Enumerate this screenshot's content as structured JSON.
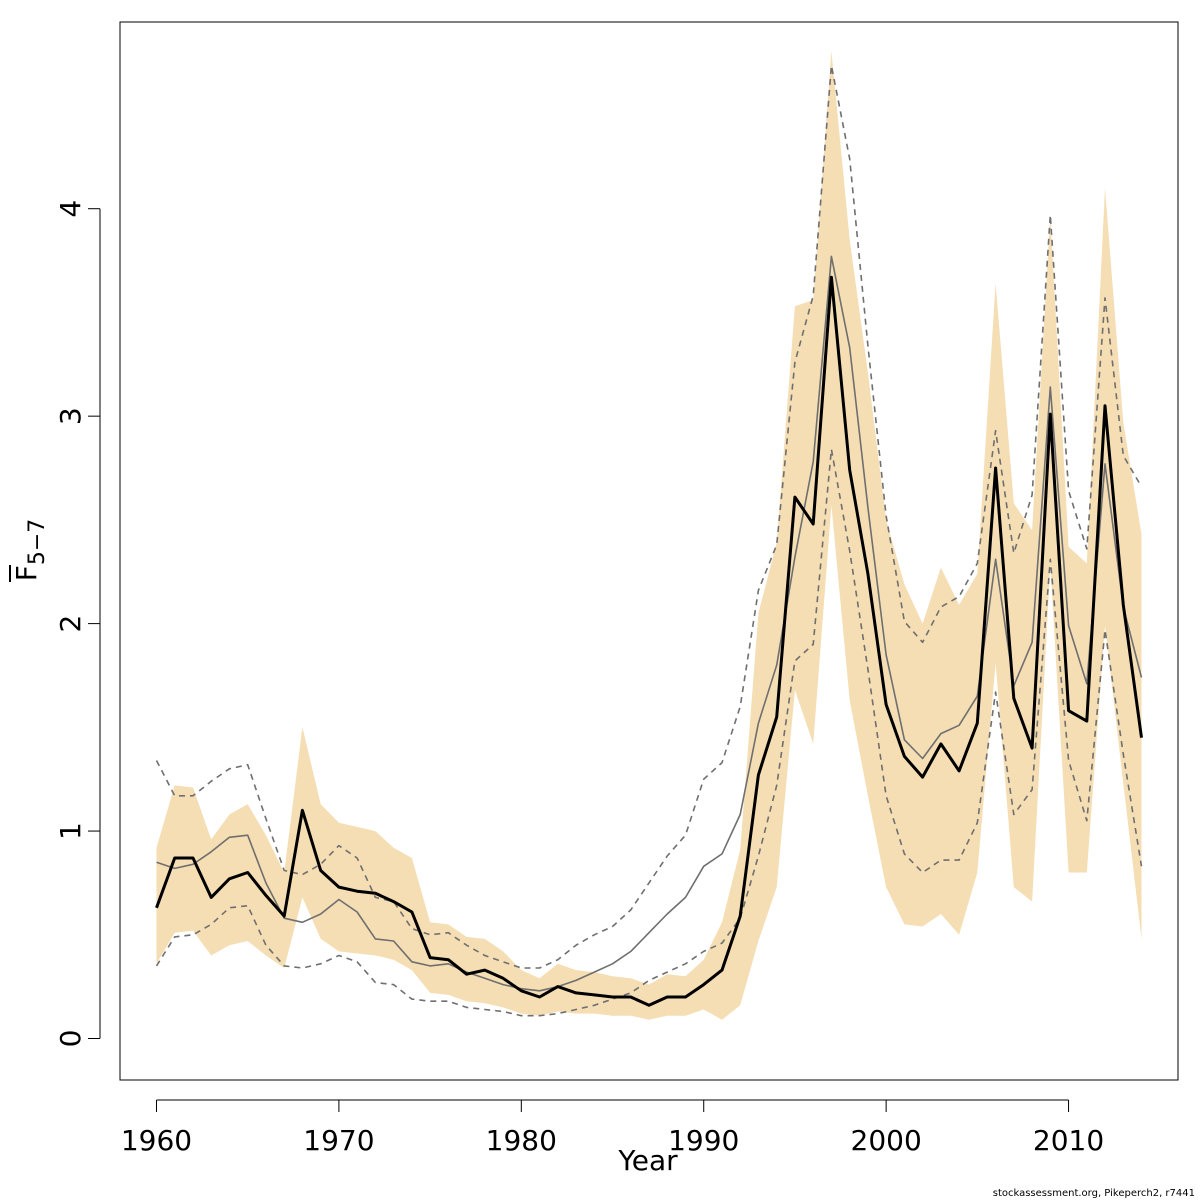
{
  "chart_data": {
    "type": "line",
    "xlabel": "Year",
    "ylabel_main": "F",
    "ylabel_sub": "5−7",
    "xlim": [
      1958,
      2016
    ],
    "ylim": [
      -0.2,
      4.9
    ],
    "x_ticks": [
      1960,
      1970,
      1980,
      1990,
      2000,
      2010
    ],
    "y_ticks": [
      0,
      1,
      2,
      3,
      4
    ],
    "grid": false,
    "years": [
      1960,
      1961,
      1962,
      1963,
      1964,
      1965,
      1966,
      1967,
      1968,
      1969,
      1970,
      1971,
      1972,
      1973,
      1974,
      1975,
      1976,
      1977,
      1978,
      1979,
      1980,
      1981,
      1982,
      1983,
      1984,
      1985,
      1986,
      1987,
      1988,
      1989,
      1990,
      1991,
      1992,
      1993,
      1994,
      1995,
      1996,
      1997,
      1998,
      1999,
      2000,
      2001,
      2002,
      2003,
      2004,
      2005,
      2006,
      2007,
      2008,
      2009,
      2010,
      2011,
      2012,
      2013,
      2014
    ],
    "band_upper": [
      0.92,
      1.22,
      1.21,
      0.96,
      1.08,
      1.13,
      0.98,
      0.8,
      1.5,
      1.13,
      1.04,
      1.02,
      1.0,
      0.92,
      0.87,
      0.56,
      0.55,
      0.49,
      0.48,
      0.42,
      0.33,
      0.29,
      0.36,
      0.33,
      0.32,
      0.3,
      0.29,
      0.26,
      0.31,
      0.3,
      0.38,
      0.56,
      0.91,
      2.05,
      2.39,
      3.53,
      3.56,
      4.76,
      3.85,
      3.21,
      2.5,
      2.19,
      2.0,
      2.27,
      2.09,
      2.24,
      3.64,
      2.58,
      2.45,
      3.97,
      2.37,
      2.29,
      4.1,
      2.97,
      2.43
    ],
    "band_lower": [
      0.36,
      0.51,
      0.52,
      0.4,
      0.45,
      0.47,
      0.4,
      0.34,
      0.68,
      0.48,
      0.42,
      0.41,
      0.4,
      0.38,
      0.33,
      0.22,
      0.21,
      0.18,
      0.17,
      0.15,
      0.12,
      0.11,
      0.13,
      0.12,
      0.12,
      0.11,
      0.11,
      0.09,
      0.11,
      0.11,
      0.14,
      0.09,
      0.16,
      0.47,
      0.73,
      1.68,
      1.42,
      2.57,
      1.63,
      1.17,
      0.73,
      0.55,
      0.54,
      0.6,
      0.5,
      0.8,
      1.81,
      0.73,
      0.66,
      2.28,
      0.8,
      0.8,
      1.99,
      1.23,
      0.48
    ],
    "series": [
      {
        "style": "estimate",
        "values": [
          0.63,
          0.87,
          0.87,
          0.68,
          0.77,
          0.8,
          0.69,
          0.59,
          1.1,
          0.81,
          0.73,
          0.71,
          0.7,
          0.66,
          0.61,
          0.39,
          0.38,
          0.31,
          0.33,
          0.29,
          0.23,
          0.2,
          0.25,
          0.22,
          0.21,
          0.2,
          0.2,
          0.16,
          0.2,
          0.2,
          0.26,
          0.33,
          0.59,
          1.27,
          1.55,
          2.61,
          2.48,
          3.67,
          2.74,
          2.24,
          1.61,
          1.36,
          1.26,
          1.42,
          1.29,
          1.52,
          2.75,
          1.64,
          1.4,
          3.01,
          1.58,
          1.53,
          3.05,
          2.09,
          1.45
        ]
      },
      {
        "style": "gray-solid",
        "values": [
          0.85,
          0.82,
          0.84,
          0.9,
          0.97,
          0.98,
          0.75,
          0.58,
          0.56,
          0.6,
          0.67,
          0.61,
          0.48,
          0.47,
          0.37,
          0.35,
          0.36,
          0.32,
          0.29,
          0.26,
          0.24,
          0.23,
          0.25,
          0.28,
          0.32,
          0.36,
          0.42,
          0.51,
          0.6,
          0.68,
          0.83,
          0.89,
          1.08,
          1.52,
          1.8,
          2.32,
          2.78,
          3.77,
          3.33,
          2.56,
          1.85,
          1.44,
          1.35,
          1.47,
          1.51,
          1.65,
          2.31,
          1.7,
          1.91,
          3.14,
          1.99,
          1.71,
          2.77,
          2.08,
          1.74
        ]
      },
      {
        "style": "gray-dashed-upper",
        "values": [
          1.34,
          1.17,
          1.17,
          1.24,
          1.3,
          1.32,
          1.06,
          0.81,
          0.79,
          0.84,
          0.93,
          0.87,
          0.68,
          0.66,
          0.53,
          0.5,
          0.51,
          0.45,
          0.4,
          0.37,
          0.34,
          0.34,
          0.38,
          0.45,
          0.5,
          0.54,
          0.62,
          0.75,
          0.88,
          0.98,
          1.25,
          1.33,
          1.6,
          2.16,
          2.38,
          3.26,
          3.58,
          4.69,
          4.24,
          3.34,
          2.52,
          2.01,
          1.91,
          2.08,
          2.13,
          2.29,
          2.93,
          2.34,
          2.62,
          3.97,
          2.64,
          2.36,
          3.57,
          2.81,
          2.66
        ]
      },
      {
        "style": "gray-dashed-lower",
        "values": [
          0.35,
          0.49,
          0.5,
          0.55,
          0.63,
          0.64,
          0.45,
          0.35,
          0.34,
          0.36,
          0.4,
          0.37,
          0.27,
          0.26,
          0.19,
          0.18,
          0.18,
          0.15,
          0.14,
          0.13,
          0.11,
          0.11,
          0.12,
          0.14,
          0.16,
          0.19,
          0.22,
          0.28,
          0.32,
          0.36,
          0.42,
          0.46,
          0.58,
          0.88,
          1.22,
          1.82,
          1.9,
          2.84,
          2.35,
          1.78,
          1.17,
          0.89,
          0.8,
          0.86,
          0.86,
          1.04,
          1.67,
          1.08,
          1.2,
          2.31,
          1.34,
          1.05,
          1.97,
          1.37,
          0.83
        ]
      }
    ],
    "colors": {
      "band": "#f5deb3",
      "estimate": "#000000",
      "retro": "#6f6f6f",
      "frame": "#000000"
    }
  },
  "credit": "stockassessment.org, Pikeperch2, r7441"
}
